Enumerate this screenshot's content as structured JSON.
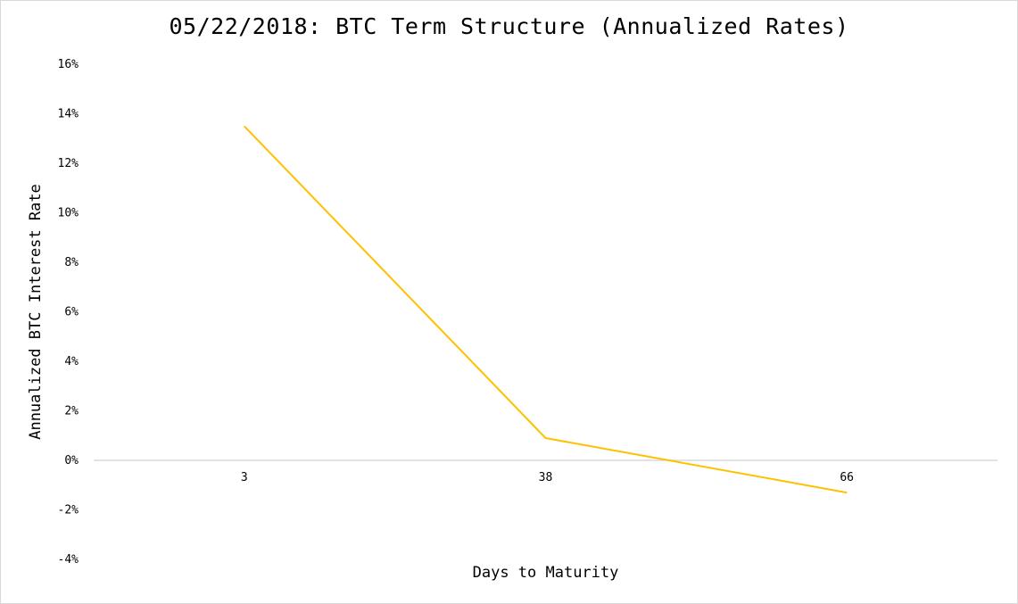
{
  "chart_data": {
    "type": "line",
    "title": "05/22/2018: BTC Term Structure (Annualized Rates)",
    "xlabel": "Days to Maturity",
    "ylabel": "Annualized BTC Interest Rate",
    "categories": [
      "3",
      "38",
      "66"
    ],
    "series": [
      {
        "values": [
          13.5,
          0.9,
          -1.3
        ],
        "color": "#FFC000"
      }
    ],
    "ylim": [
      -4,
      16
    ],
    "yticks": [
      -4,
      -2,
      0,
      2,
      4,
      6,
      8,
      10,
      12,
      14,
      16
    ],
    "ytick_labels": [
      "-4%",
      "-2%",
      "0%",
      "2%",
      "4%",
      "6%",
      "8%",
      "10%",
      "12%",
      "14%",
      "16%"
    ],
    "grid": false,
    "legend": "none",
    "colors": {
      "axis_line": "#D9D9D9",
      "text": "#000000"
    }
  }
}
